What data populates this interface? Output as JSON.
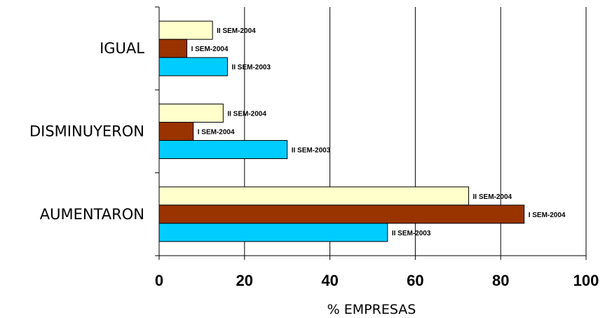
{
  "chart_data": {
    "type": "bar",
    "orientation": "horizontal",
    "categories": [
      "IGUAL",
      "DISMINUYERON",
      "AUMENTARON"
    ],
    "series": [
      {
        "name": "II SEM-2004",
        "color": "#ffffcc",
        "values": [
          12.5,
          15,
          72.5
        ]
      },
      {
        "name": "I SEM-2004",
        "color": "#993300",
        "values": [
          6.5,
          8,
          85.5
        ]
      },
      {
        "name": "II SEM-2003",
        "color": "#00ccff",
        "values": [
          16,
          30,
          53.5
        ]
      }
    ],
    "xlabel": "% EMPRESAS",
    "xlim": [
      0,
      100
    ],
    "xticks": [
      "0",
      "20",
      "40",
      "60",
      "80",
      "100"
    ],
    "grid": "vertical",
    "legend": "none (labels next to bars)"
  }
}
